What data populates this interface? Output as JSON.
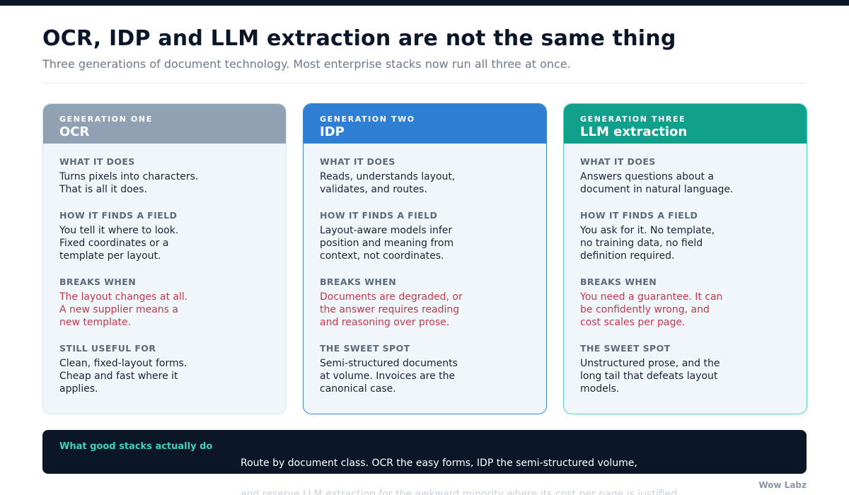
{
  "header": {
    "title": "OCR, IDP and LLM extraction are not the same thing",
    "subtitle": "Three generations of document technology. Most enterprise stacks now run all three at once."
  },
  "cards": [
    {
      "generation": "GENERATION ONE",
      "name": "OCR",
      "sections": [
        {
          "label": "WHAT IT DOES",
          "text": "Turns pixels into characters.\nThat is all it does."
        },
        {
          "label": "HOW IT FINDS A FIELD",
          "text": "You tell it where to look.\nFixed coordinates or a\ntemplate per layout."
        },
        {
          "label": "BREAKS WHEN",
          "text": "The layout changes at all.\nA new supplier means a\nnew template."
        },
        {
          "label": "STILL USEFUL FOR",
          "text": "Clean, fixed-layout forms.\nCheap and fast where it\napplies."
        }
      ]
    },
    {
      "generation": "GENERATION TWO",
      "name": "IDP",
      "sections": [
        {
          "label": "WHAT IT DOES",
          "text": "Reads, understands layout,\nvalidates, and routes."
        },
        {
          "label": "HOW IT FINDS A FIELD",
          "text": "Layout-aware models infer\nposition and meaning from\ncontext, not coordinates."
        },
        {
          "label": "BREAKS WHEN",
          "text": "Documents are degraded, or\nthe answer requires reading\nand reasoning over prose."
        },
        {
          "label": "THE SWEET SPOT",
          "text": "Semi-structured documents\nat volume. Invoices are the\ncanonical case."
        }
      ]
    },
    {
      "generation": "GENERATION THREE",
      "name": "LLM extraction",
      "sections": [
        {
          "label": "WHAT IT DOES",
          "text": "Answers questions about a\ndocument in natural language."
        },
        {
          "label": "HOW IT FINDS A FIELD",
          "text": "You ask for it. No template,\nno training data, no field\ndefinition required."
        },
        {
          "label": "BREAKS WHEN",
          "text": "You need a guarantee. It can\nbe confidently wrong, and\ncost scales per page."
        },
        {
          "label": "THE SWEET SPOT",
          "text": "Unstructured prose, and the\nlong tail that defeats layout\nmodels."
        }
      ]
    }
  ],
  "footer": {
    "label": "What good stacks actually do",
    "line1": "Route by document class. OCR the easy forms, IDP the semi-structured volume,",
    "line2": "and reserve LLM extraction for the awkward minority where its cost per page is justified."
  },
  "brand": "Wow Labz",
  "colors": {
    "ocr_header": "#8fa1b3",
    "idp_header": "#2f80d4",
    "llm_header": "#11a08c",
    "breaks_text": "#c0394b",
    "footer_bg": "#0b1628",
    "footer_label": "#3ed3bf"
  }
}
